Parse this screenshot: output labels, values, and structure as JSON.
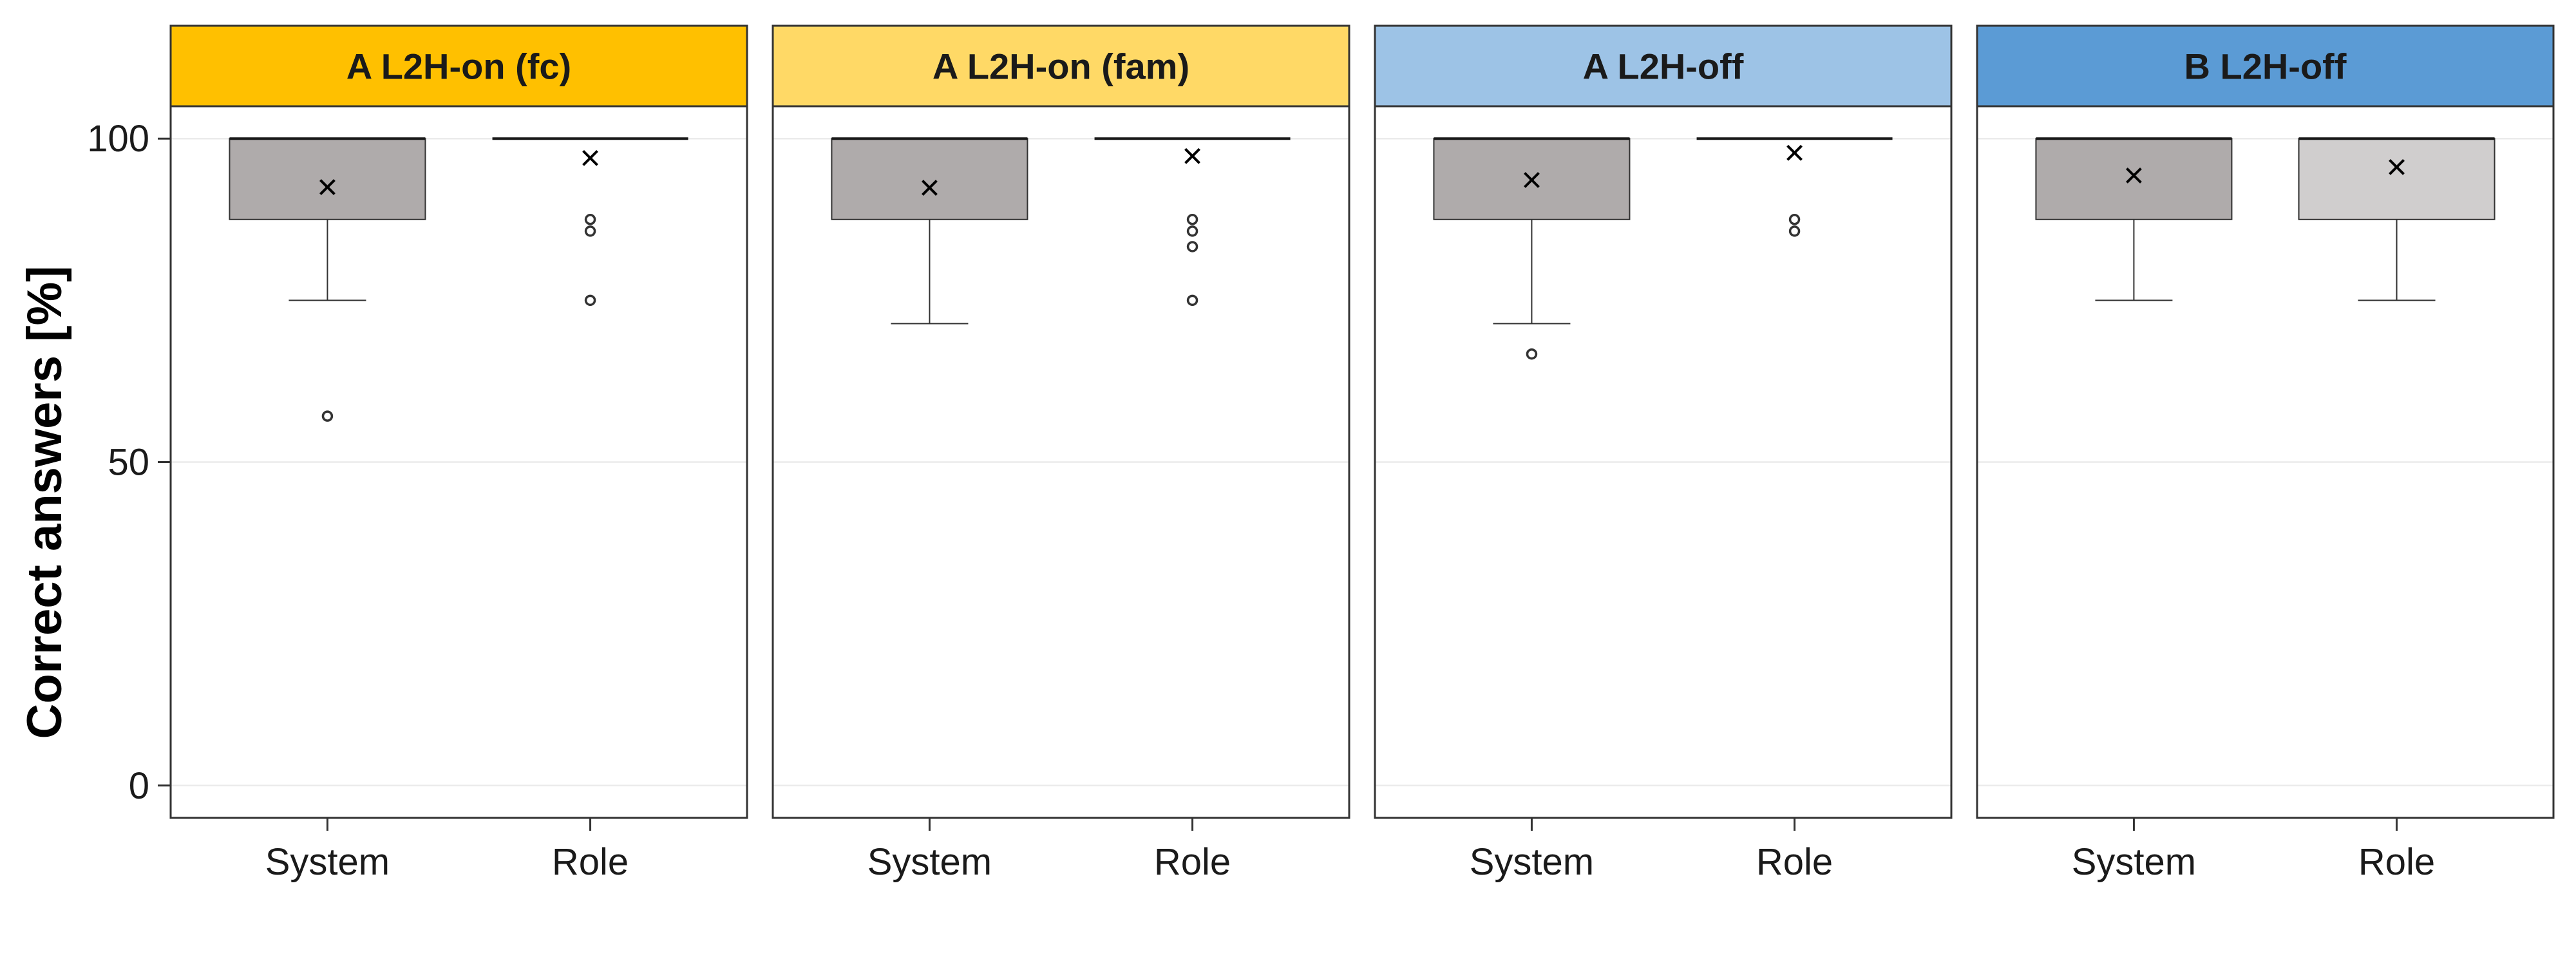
{
  "chart_data": {
    "type": "box",
    "ylabel": "Correct answers [%]",
    "xlabel": "",
    "ylim": [
      -5,
      105
    ],
    "yticks": [
      0,
      50,
      100
    ],
    "grid": true,
    "categories": [
      "System",
      "Role"
    ],
    "panels": [
      {
        "label": "A L2H-on (fc)",
        "strip_color": "#FFC000",
        "boxes": [
          {
            "category": "System",
            "min": 75,
            "q1": 87.5,
            "median": 100,
            "q3": 100,
            "max": 100,
            "mean": 92.5,
            "outliers": [
              57.1
            ],
            "fill": "#AFABAB"
          },
          {
            "category": "Role",
            "min": 100,
            "q1": 100,
            "median": 100,
            "q3": 100,
            "max": 100,
            "mean": 97,
            "outliers": [
              87.5,
              85.7,
              75
            ],
            "fill": "#AFABAB"
          }
        ]
      },
      {
        "label": "A L2H-on (fam)",
        "strip_color": "#FFD966",
        "boxes": [
          {
            "category": "System",
            "min": 71.4,
            "q1": 87.5,
            "median": 100,
            "q3": 100,
            "max": 100,
            "mean": 92.4,
            "outliers": [],
            "fill": "#AFABAB"
          },
          {
            "category": "Role",
            "min": 100,
            "q1": 100,
            "median": 100,
            "q3": 100,
            "max": 100,
            "mean": 97.3,
            "outliers": [
              87.5,
              85.7,
              83.3,
              75
            ],
            "fill": "#AFABAB"
          }
        ]
      },
      {
        "label": "A L2H-off",
        "strip_color": "#9DC3E6",
        "boxes": [
          {
            "category": "System",
            "min": 71.4,
            "q1": 87.5,
            "median": 100,
            "q3": 100,
            "max": 100,
            "mean": 93.6,
            "outliers": [
              66.7
            ],
            "fill": "#AFABAB"
          },
          {
            "category": "Role",
            "min": 100,
            "q1": 100,
            "median": 100,
            "q3": 100,
            "max": 100,
            "mean": 97.8,
            "outliers": [
              87.5,
              85.7
            ],
            "fill": "#AFABAB"
          }
        ]
      },
      {
        "label": "B L2H-off",
        "strip_color": "#5B9BD5",
        "boxes": [
          {
            "category": "System",
            "min": 75,
            "q1": 87.5,
            "median": 100,
            "q3": 100,
            "max": 100,
            "mean": 94.3,
            "outliers": [],
            "fill": "#AFABAB"
          },
          {
            "category": "Role",
            "min": 75,
            "q1": 87.5,
            "median": 100,
            "q3": 100,
            "max": 100,
            "mean": 95.6,
            "outliers": [],
            "fill": "#D0CECE"
          }
        ]
      }
    ]
  }
}
